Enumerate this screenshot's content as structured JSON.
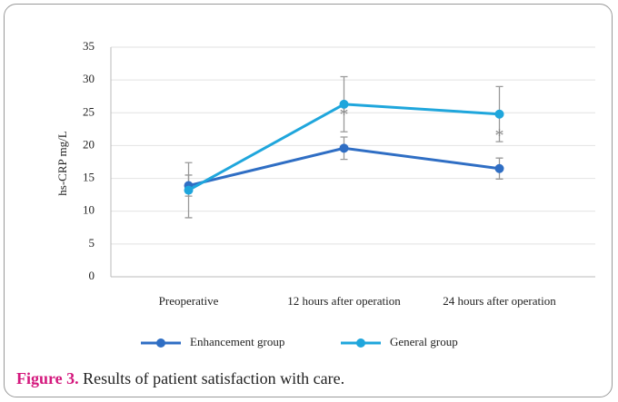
{
  "chart_data": {
    "type": "line",
    "ylabel": "hs-CRP mg/L",
    "categories": [
      "Preoperative",
      "12 hours after operation",
      "24 hours after operation"
    ],
    "series": [
      {
        "name": "Enhancement group",
        "color": "#2f6ec4",
        "values": [
          13.9,
          19.6,
          16.5
        ],
        "errors": [
          1.6,
          1.7,
          1.6
        ]
      },
      {
        "name": "General group",
        "color": "#1fa6dc",
        "values": [
          13.2,
          26.3,
          24.8
        ],
        "errors": [
          4.2,
          4.2,
          4.2
        ]
      }
    ],
    "annotations": [
      {
        "text": "*",
        "category": "12 hours after operation"
      },
      {
        "text": "*",
        "category": "24 hours after operation"
      }
    ],
    "ylim": [
      0,
      35
    ],
    "yticks": [
      0,
      5,
      10,
      15,
      20,
      25,
      30,
      35
    ],
    "grid": true,
    "legend": "bottom"
  },
  "caption": {
    "label": "Figure 3.",
    "text": "Results of patient satisfaction with care."
  }
}
